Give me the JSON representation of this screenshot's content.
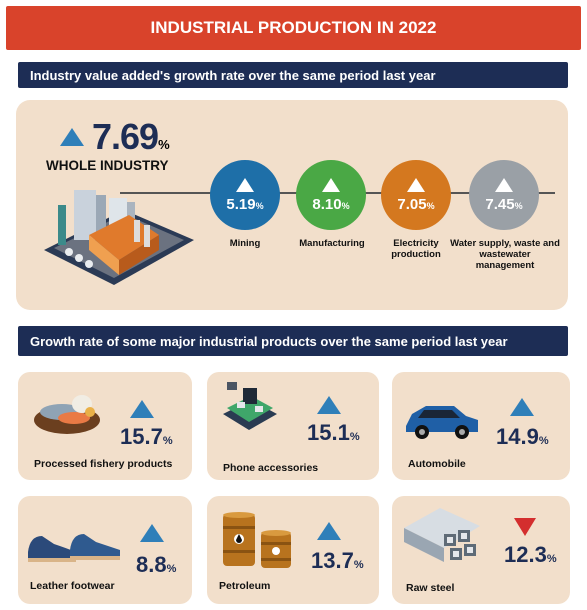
{
  "title": "INDUSTRIAL PRODUCTION IN 2022",
  "section1": {
    "heading": "Industry value added's growth rate over the same period last year",
    "whole": {
      "value": "7.69",
      "unit": "%",
      "label": "WHOLE INDUSTRY"
    },
    "sectors": [
      {
        "value": "5.19",
        "unit": "%",
        "label": "Mining",
        "color": "#1e6fa8"
      },
      {
        "value": "8.10",
        "unit": "%",
        "label": "Manufacturing",
        "color": "#4aa845"
      },
      {
        "value": "7.05",
        "unit": "%",
        "label": "Electricity production",
        "color": "#d4781f"
      },
      {
        "value": "7.45",
        "unit": "%",
        "label": "Water supply, waste and wastewater management",
        "color": "#9aa0a6"
      }
    ]
  },
  "section2": {
    "heading": "Growth rate of some major industrial products over the same period last year",
    "products": [
      {
        "name": "Processed fishery products",
        "value": "15.7",
        "unit": "%",
        "direction": "up",
        "icon": "fish-icon"
      },
      {
        "name": "Phone accessories",
        "value": "15.1",
        "unit": "%",
        "direction": "up",
        "icon": "circuit-board-icon"
      },
      {
        "name": "Automobile",
        "value": "14.9",
        "unit": "%",
        "direction": "up",
        "icon": "car-icon"
      },
      {
        "name": "Leather footwear",
        "value": "8.8",
        "unit": "%",
        "direction": "up",
        "icon": "shoes-icon"
      },
      {
        "name": "Petroleum",
        "value": "13.7",
        "unit": "%",
        "direction": "up",
        "icon": "oil-barrel-icon"
      },
      {
        "name": "Raw steel",
        "value": "12.3",
        "unit": "%",
        "direction": "down",
        "icon": "steel-pipes-icon"
      }
    ]
  },
  "colors": {
    "title_bg": "#d9432b",
    "heading_bg": "#1d2d55",
    "panel_bg": "#f2dfcb",
    "up": "#2f7fb9",
    "down": "#d42e2e"
  }
}
